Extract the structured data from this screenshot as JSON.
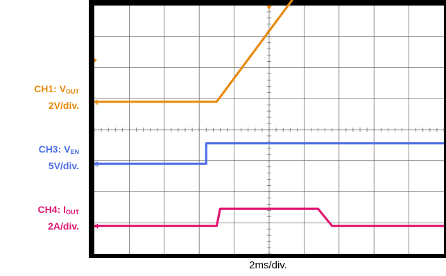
{
  "chart_data": {
    "type": "line",
    "x_division": "2ms/div.",
    "channels": [
      {
        "id": "CH1",
        "name_prefix": "CH1: V",
        "name_sub": "OUT",
        "scale": "2V/div.",
        "color": "#e8890c",
        "marker": "1",
        "x": [
          0,
          3.5,
          6.3,
          10
        ],
        "values": [
          0.0,
          0.0,
          8.5,
          8.5
        ]
      },
      {
        "id": "CH3",
        "name_prefix": "CH3: V",
        "name_sub": "EN",
        "scale": "5V/div.",
        "color": "#4e6fe6",
        "marker": "3",
        "x": [
          0,
          3.2,
          3.2,
          10
        ],
        "values": [
          0.0,
          0.0,
          3.3,
          3.3
        ]
      },
      {
        "id": "CH4",
        "name_prefix": "CH4: I",
        "name_sub": "OUT",
        "scale": "2A/div.",
        "color": "#e0136f",
        "marker": "4",
        "x": [
          0,
          3.5,
          3.6,
          6.4,
          6.8,
          10
        ],
        "values": [
          0.0,
          0.0,
          1.1,
          1.1,
          0.0,
          0.0
        ]
      }
    ],
    "grid": true,
    "divisions": {
      "x": 10,
      "y": 8
    }
  }
}
